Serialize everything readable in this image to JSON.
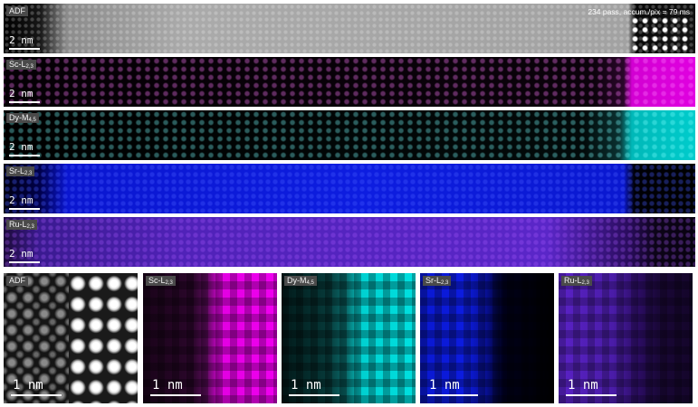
{
  "strips": {
    "adf": {
      "label": "ADF",
      "scalebar": "2 nm",
      "info": "234 pass, accum./pix = 79 ms"
    },
    "sc": {
      "label_main": "Sc-L",
      "label_sub": "2,3",
      "scalebar": "2 nm"
    },
    "dy": {
      "label_main": "Dy-M",
      "label_sub": "4,5",
      "scalebar": "2 nm"
    },
    "sr": {
      "label_main": "Sr-L",
      "label_sub": "2,3",
      "scalebar": "2 nm"
    },
    "ru": {
      "label_main": "Ru-L",
      "label_sub": "2,3",
      "scalebar": "2 nm"
    }
  },
  "tiles": {
    "adf": {
      "label": "ADF",
      "scalebar": "1 nm"
    },
    "sc": {
      "label_main": "Sc-L",
      "label_sub": "2,3",
      "scalebar": "1 nm"
    },
    "dy": {
      "label_main": "Dy-M",
      "label_sub": "4,5",
      "scalebar": "1 nm"
    },
    "sr": {
      "label_main": "Sr-L",
      "label_sub": "2,3",
      "scalebar": "1 nm"
    },
    "ru": {
      "label_main": "Ru-L",
      "label_sub": "2,3",
      "scalebar": "1 nm"
    }
  },
  "colors": {
    "sc": "#e000e0",
    "dy": "#00cccc",
    "sr": "#0d1de0",
    "ru": "#5a26c8",
    "adf": "#aaaaaa"
  }
}
